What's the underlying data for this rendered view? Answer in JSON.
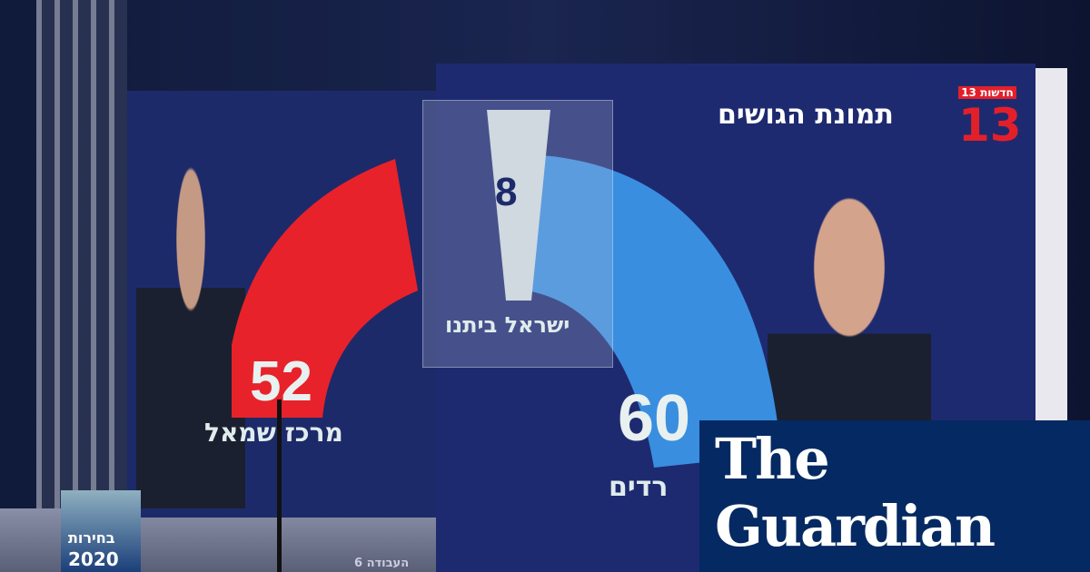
{
  "screen": {
    "title": "תמונת הגושים",
    "channel_logo_text": "חדשות 13",
    "channel_number": "13",
    "left_bloc": {
      "seats": "52",
      "label": "מרכז שמאל",
      "color": "#e8222a"
    },
    "middle_bloc": {
      "seats": "8",
      "label": "ישראל ביתנו",
      "color": "#d0d8e0"
    },
    "right_bloc": {
      "seats": "60",
      "label": "רדים",
      "color": "#3a8ee0"
    }
  },
  "studio": {
    "election_badge_line1": "בחירות",
    "election_badge_line2": "2020",
    "ticker_partial": "העבודה 6"
  },
  "publisher": {
    "line1": "The",
    "line2": "Guardian",
    "color": "#052962"
  }
}
